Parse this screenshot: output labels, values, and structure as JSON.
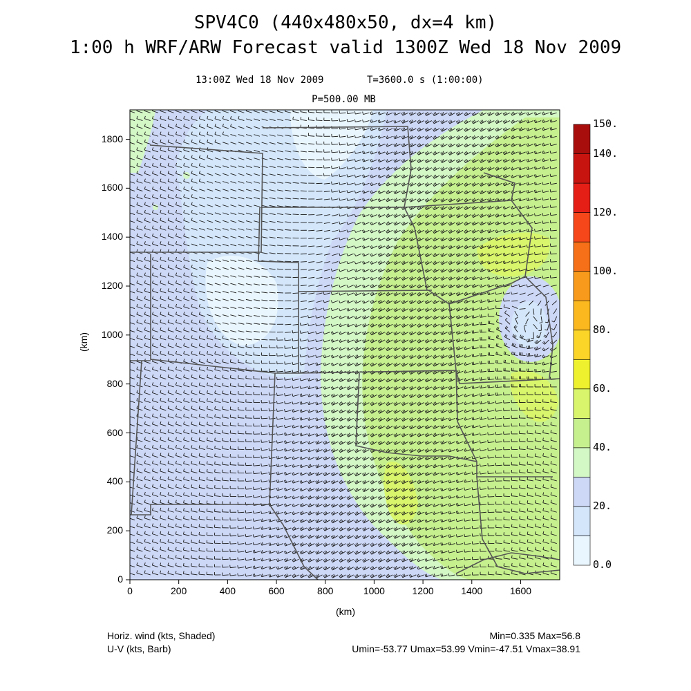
{
  "header": {
    "title_line1": "SPV4C0 (440x480x50, dx=4 km)",
    "title_line2": "1:00 h WRF/ARW Forecast valid 1300Z Wed 18 Nov 2009",
    "valid_time": "13:00Z Wed 18 Nov 2009",
    "model_time": "T=3600.0 s (1:00:00)",
    "level": "P=500.00 MB"
  },
  "axes": {
    "xlabel": "(km)",
    "ylabel": "(km)",
    "x_ticks": [
      "0",
      "200",
      "400",
      "600",
      "800",
      "1000",
      "1200",
      "1400",
      "1600"
    ],
    "y_ticks": [
      "0",
      "200",
      "400",
      "600",
      "800",
      "1000",
      "1200",
      "1400",
      "1600",
      "1800"
    ],
    "x_range_km": [
      0,
      1760
    ],
    "y_range_km": [
      0,
      1920
    ]
  },
  "colorbar": {
    "labels": [
      "0.0",
      "20.",
      "40.",
      "60.",
      "80.",
      "100.",
      "120.",
      "140.",
      "150."
    ],
    "levels": [
      0,
      10,
      20,
      30,
      40,
      50,
      60,
      70,
      80,
      90,
      100,
      110,
      120,
      130,
      140,
      150
    ],
    "colors": [
      "#e9f6fd",
      "#d3e6fa",
      "#cdd8f7",
      "#d3f7c5",
      "#c6f08e",
      "#d8f56b",
      "#eef22e",
      "#fbd528",
      "#fbb91f",
      "#f89a1b",
      "#f57018",
      "#f5471a",
      "#e51e16",
      "#c8140f",
      "#a80f0c"
    ]
  },
  "footer": {
    "left_line1": "Horiz. wind (kts, Shaded)",
    "left_line2": "U-V (kts, Barb)",
    "right_line1": "Min=0.335 Max=56.8",
    "right_line2": "Umin=-53.77 Umax=53.99 Vmin=-47.51 Vmax=38.91"
  },
  "field": {
    "variable": "Horiz. wind speed",
    "units": "kts",
    "min": 0.335,
    "max": 56.8
  }
}
